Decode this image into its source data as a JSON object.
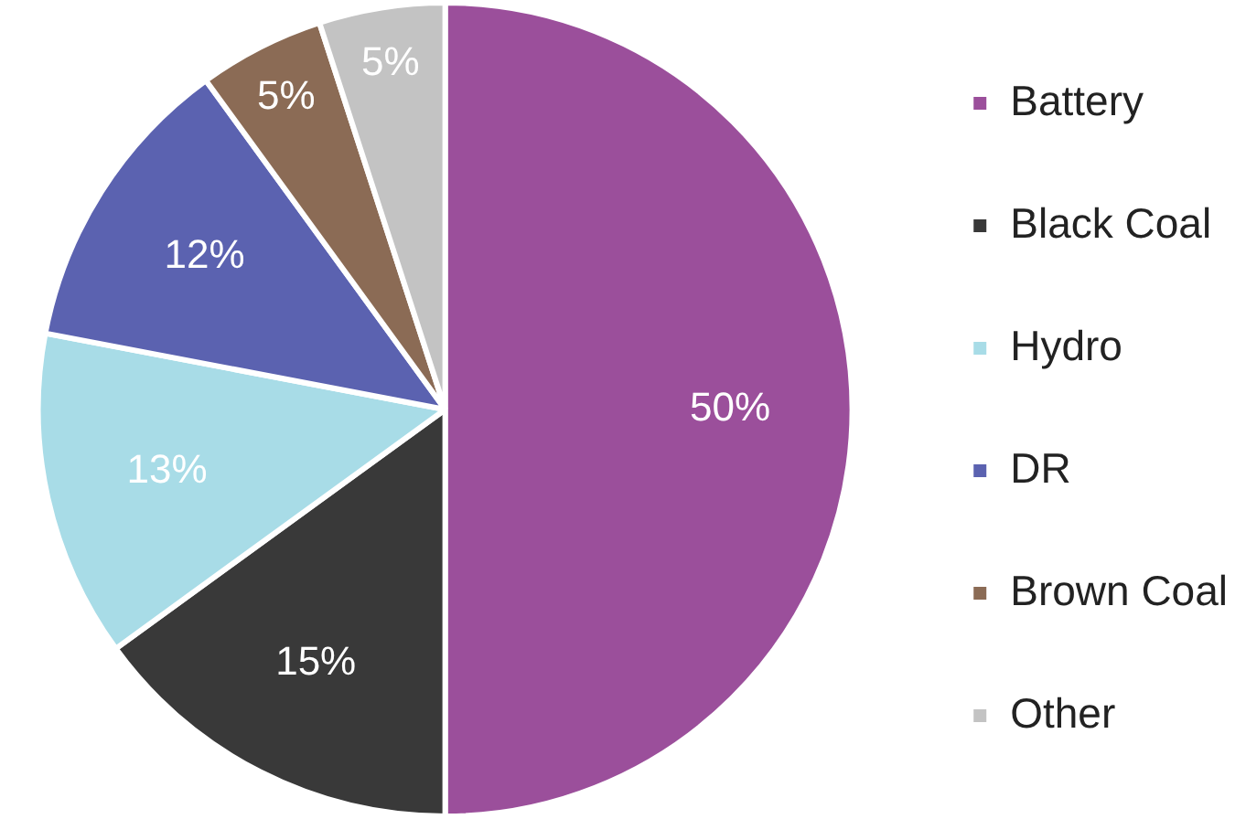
{
  "chart_data": {
    "type": "pie",
    "categories": [
      "Battery",
      "Black Coal",
      "Hydro",
      "DR",
      "Brown Coal",
      "Other"
    ],
    "values": [
      50,
      15,
      13,
      12,
      5,
      5
    ],
    "value_labels": [
      "50%",
      "15%",
      "13%",
      "12%",
      "5%",
      "5%"
    ],
    "colors": [
      "#9b4f9b",
      "#393939",
      "#a8dce7",
      "#5b62b0",
      "#8b6b55",
      "#c3c3c3"
    ],
    "legend": "right"
  }
}
